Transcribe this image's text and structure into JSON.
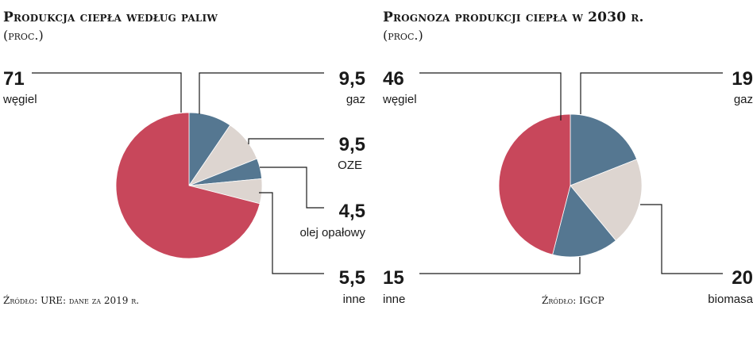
{
  "colors": {
    "red": "#c8475b",
    "blue": "#557791",
    "beige": "#ddd5d0",
    "line": "#1a1a1a"
  },
  "chart_data": [
    {
      "type": "pie",
      "title": "Produkcja ciepła według paliw",
      "subtitle": "(proc.)",
      "source": "Źródło: URE: dane za 2019 r.",
      "slices": [
        {
          "label": "gaz",
          "value_label": "9,5",
          "value": 9.5,
          "color": "blue"
        },
        {
          "label": "OZE",
          "value_label": "9,5",
          "value": 9.5,
          "color": "beige"
        },
        {
          "label": "olej opałowy",
          "value_label": "4,5",
          "value": 4.5,
          "color": "blue"
        },
        {
          "label": "inne",
          "value_label": "5,5",
          "value": 5.5,
          "color": "beige"
        },
        {
          "label": "węgiel",
          "value_label": "71",
          "value": 71,
          "color": "red"
        }
      ]
    },
    {
      "type": "pie",
      "title": "Prognoza produkcji ciepła w 2030 r.",
      "subtitle": "(proc.)",
      "source": "Źródło: IGCP",
      "slices": [
        {
          "label": "gaz",
          "value_label": "19",
          "value": 19,
          "color": "blue"
        },
        {
          "label": "biomasa",
          "value_label": "20",
          "value": 20,
          "color": "beige"
        },
        {
          "label": "inne",
          "value_label": "15",
          "value": 15,
          "color": "blue"
        },
        {
          "label": "węgiel",
          "value_label": "46",
          "value": 46,
          "color": "red"
        }
      ]
    }
  ]
}
